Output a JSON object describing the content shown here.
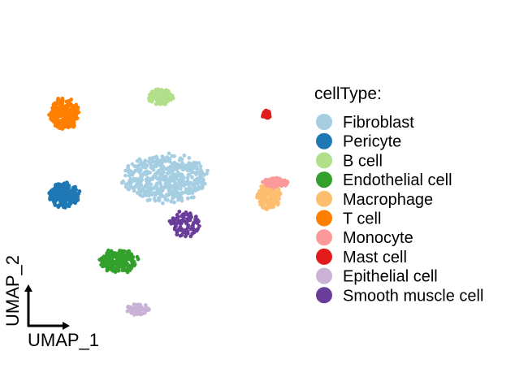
{
  "chart_data": {
    "type": "scatter",
    "title": "",
    "xlabel": "UMAP_1",
    "ylabel": "UMAP_2",
    "grid": false,
    "legend": {
      "title": "cellType:",
      "placement": "right"
    },
    "series": [
      {
        "name": "Fibroblast",
        "color": "#A6CEE3",
        "centroid": [
          0.1,
          0.6
        ],
        "spread": [
          1.55,
          0.85
        ]
      },
      {
        "name": "Pericyte",
        "color": "#1F78B4",
        "centroid": [
          -3.7,
          0.0
        ],
        "spread": [
          0.55,
          0.45
        ]
      },
      {
        "name": "B cell",
        "color": "#B2DF8A",
        "centroid": [
          -0.1,
          3.55
        ],
        "spread": [
          0.45,
          0.28
        ]
      },
      {
        "name": "Endothelial cell",
        "color": "#33A02C",
        "centroid": [
          -1.65,
          -2.4
        ],
        "spread": [
          0.7,
          0.42
        ]
      },
      {
        "name": "Macrophage",
        "color": "#FDBF6F",
        "centroid": [
          3.95,
          -0.05
        ],
        "spread": [
          0.45,
          0.45
        ]
      },
      {
        "name": "T cell",
        "color": "#FF7F00",
        "centroid": [
          -3.7,
          2.95
        ],
        "spread": [
          0.55,
          0.55
        ]
      },
      {
        "name": "Monocyte",
        "color": "#FB9A99",
        "centroid": [
          4.2,
          0.45
        ],
        "spread": [
          0.45,
          0.18
        ]
      },
      {
        "name": "Mast cell",
        "color": "#E31A1C",
        "centroid": [
          3.85,
          2.9
        ],
        "spread": [
          0.15,
          0.15
        ]
      },
      {
        "name": "Epithelial cell",
        "color": "#CAB2D6",
        "centroid": [
          -0.95,
          -4.15
        ],
        "spread": [
          0.45,
          0.2
        ]
      },
      {
        "name": "Smooth muscle cell",
        "color": "#6A3D9A",
        "centroid": [
          0.85,
          -1.05
        ],
        "spread": [
          0.6,
          0.45
        ]
      }
    ]
  }
}
